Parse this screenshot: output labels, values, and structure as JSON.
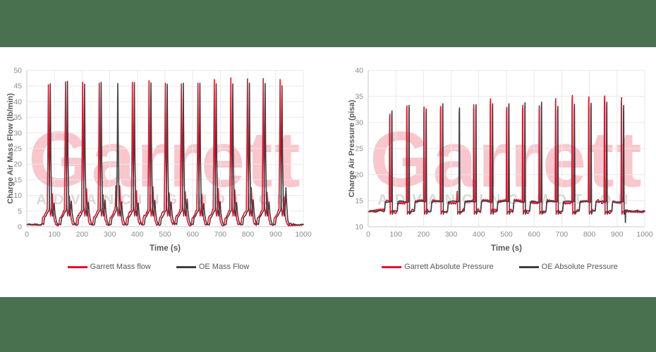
{
  "page": {
    "background": "#ffffff",
    "brand_bar_color": "#49714f"
  },
  "chart_data": [
    {
      "type": "line",
      "title": "",
      "xlabel": "Time (s)",
      "ylabel": "Charge Air Mass Flow (lb/min)",
      "xlim": [
        0,
        1000
      ],
      "ylim": [
        0,
        50
      ],
      "xticks": [
        0,
        100,
        200,
        300,
        400,
        500,
        600,
        700,
        800,
        900,
        1000
      ],
      "yticks": [
        0,
        5,
        10,
        15,
        20,
        25,
        30,
        35,
        40,
        45,
        50
      ],
      "grid": true,
      "legend_position": "bottom",
      "watermark": {
        "text": "Garrett",
        "subtext": "ADVANCING MOTION"
      },
      "series": [
        {
          "name": "Garrett Mass flow",
          "color": "#e8112d"
        },
        {
          "name": "OE Mass Flow",
          "color": "#3f3f3f"
        }
      ],
      "waveform": {
        "kind": "spike",
        "baseline": 0.7,
        "oe_delay": 7,
        "cycles": [
          {
            "t": 78,
            "g": 45.4,
            "o": 45.7,
            "gb": 10.5,
            "ob": 7.5
          },
          {
            "t": 140,
            "g": 46.3,
            "o": 46.5,
            "gb": 9.8,
            "ob": 8.2
          },
          {
            "t": 202,
            "g": 46.2,
            "o": 45.6,
            "gb": 12.1,
            "ob": 7.8
          },
          {
            "t": 262,
            "g": 45.9,
            "o": 46.2,
            "gb": 10.2,
            "ob": 8.5
          },
          {
            "t": 322,
            "g": 13.2,
            "o": 45.8,
            "gb": 13.1,
            "ob": 8.0
          },
          {
            "t": 382,
            "g": 46.2,
            "o": 46.1,
            "gb": 11.5,
            "ob": 7.6
          },
          {
            "t": 442,
            "g": 46.7,
            "o": 46.0,
            "gb": 12.8,
            "ob": 8.4
          },
          {
            "t": 501,
            "g": 45.9,
            "o": 45.6,
            "gb": 10.8,
            "ob": 7.9
          },
          {
            "t": 559,
            "g": 45.7,
            "o": 45.9,
            "gb": 11.2,
            "ob": 8.8
          },
          {
            "t": 619,
            "g": 45.9,
            "o": 45.9,
            "gb": 10.4,
            "ob": 7.4
          },
          {
            "t": 678,
            "g": 47.1,
            "o": 45.7,
            "gb": 12.2,
            "ob": 8.1
          },
          {
            "t": 738,
            "g": 47.6,
            "o": 45.7,
            "gb": 11.8,
            "ob": 7.7
          },
          {
            "t": 798,
            "g": 47.3,
            "o": 45.9,
            "gb": 12.5,
            "ob": 8.6
          },
          {
            "t": 855,
            "g": 47.4,
            "o": 45.8,
            "gb": 11.0,
            "ob": 7.9
          },
          {
            "t": 916,
            "g": 47.1,
            "o": 45.1,
            "gb": 9.5,
            "ob": 12.5
          }
        ],
        "g_tail": [
          [
            944,
            0.7
          ]
        ],
        "oe_tail": [
          [
            950,
            1.0
          ],
          [
            958,
            0.7
          ]
        ]
      }
    },
    {
      "type": "line",
      "title": "",
      "xlabel": "Time (s)",
      "ylabel": "Charge Air Pressure (pisa)",
      "xlim": [
        0,
        1000
      ],
      "ylim": [
        10,
        40
      ],
      "xticks": [
        0,
        100,
        200,
        300,
        400,
        500,
        600,
        700,
        800,
        900,
        1000
      ],
      "yticks": [
        10,
        15,
        20,
        25,
        30,
        35,
        40
      ],
      "grid": true,
      "legend_position": "bottom",
      "watermark": {
        "text": "Garrett",
        "subtext": "ADVANCING MOTION"
      },
      "series": [
        {
          "name": "Garrett Absolute Pressure",
          "color": "#e8112d"
        },
        {
          "name": "OE Absolute Pressure",
          "color": "#3f3f3f"
        }
      ],
      "waveform": {
        "kind": "plateau",
        "baseline": 12.9,
        "plateau": 14.8,
        "oe_delay": 8,
        "cycles": [
          {
            "t": 78,
            "g": 31.6,
            "o": 32.2
          },
          {
            "t": 140,
            "g": 33.2,
            "o": 33.3
          },
          {
            "t": 202,
            "g": 33.0,
            "o": 32.6
          },
          {
            "t": 262,
            "g": 33.1,
            "o": 33.6
          },
          {
            "t": 322,
            "g": 16.8,
            "o": 32.8
          },
          {
            "t": 382,
            "g": 33.4,
            "o": 33.4
          },
          {
            "t": 442,
            "g": 34.5,
            "o": 33.6
          },
          {
            "t": 501,
            "g": 32.9,
            "o": 33.6
          },
          {
            "t": 559,
            "g": 33.3,
            "o": 33.8
          },
          {
            "t": 619,
            "g": 33.2,
            "o": 33.9
          },
          {
            "t": 678,
            "g": 34.6,
            "o": 33.1
          },
          {
            "t": 738,
            "g": 35.2,
            "o": 33.5
          },
          {
            "t": 798,
            "g": 34.9,
            "o": 33.7
          },
          {
            "t": 855,
            "g": 35.1,
            "o": 33.9
          },
          {
            "t": 916,
            "g": 34.8,
            "o": 33.3
          }
        ],
        "g_tail": [
          [
            924,
            12.9
          ]
        ],
        "oe_tail": [
          [
            929.2,
            13.1
          ],
          [
            930,
            10.8
          ],
          [
            931.5,
            13.2
          ],
          [
            940,
            13.0
          ]
        ]
      }
    }
  ]
}
